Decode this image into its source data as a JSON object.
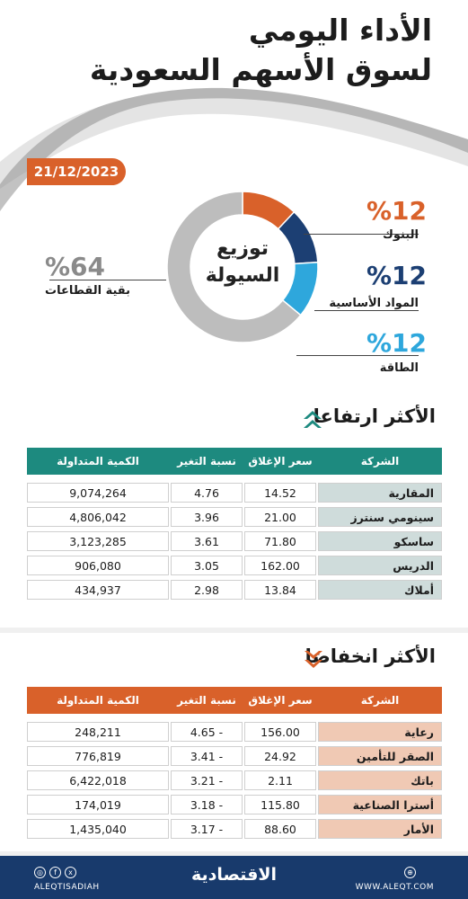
{
  "header": {
    "title_line1": "الأداء اليومي",
    "title_line2": "لسوق الأسهم السعودية",
    "date": "21/12/2023"
  },
  "colors": {
    "orange": "#d9612a",
    "navy": "#1c3f73",
    "sky": "#2ea7dc",
    "grey": "#bdbdbd",
    "teal": "#1d8a7f",
    "footer": "#183a6c"
  },
  "chart_data": {
    "type": "pie",
    "title": "توزيع السيولة",
    "center_line1": "توزيع",
    "center_line2": "السيولة",
    "slices": [
      {
        "label": "البنوك",
        "value": 12,
        "display": "%12",
        "color": "#d9612a"
      },
      {
        "label": "المواد الأساسية",
        "value": 12,
        "display": "%12",
        "color": "#1c3f73"
      },
      {
        "label": "الطاقة",
        "value": 12,
        "display": "%12",
        "color": "#2ea7dc"
      },
      {
        "label": "بقية القطاعات",
        "value": 64,
        "display": "%64",
        "color": "#bdbdbd"
      }
    ]
  },
  "gainers": {
    "title": "الأكثر ارتفاعا",
    "icon": "double-chevron-up-icon",
    "headers": {
      "company": "الشركة",
      "close": "سعر الإغلاق",
      "change": "نسبة التغير %",
      "volume": "الكمية المتداولة"
    },
    "rows": [
      {
        "company": "المقارية",
        "close": "14.52",
        "change": "4.76",
        "volume": "9,074,264"
      },
      {
        "company": "سينومي سنترز",
        "close": "21.00",
        "change": "3.96",
        "volume": "4,806,042"
      },
      {
        "company": "ساسكو",
        "close": "71.80",
        "change": "3.61",
        "volume": "3,123,285"
      },
      {
        "company": "الدريس",
        "close": "162.00",
        "change": "3.05",
        "volume": "906,080"
      },
      {
        "company": "أملاك",
        "close": "13.84",
        "change": "2.98",
        "volume": "434,937"
      }
    ]
  },
  "losers": {
    "title": "الأكثر انخفاضا",
    "icon": "double-chevron-down-icon",
    "headers": {
      "company": "الشركة",
      "close": "سعر الإغلاق",
      "change": "نسبة التغير %",
      "volume": "الكمية المتداولة"
    },
    "rows": [
      {
        "company": "رعاية",
        "close": "156.00",
        "change": "4.65 -",
        "volume": "248,211"
      },
      {
        "company": "الصقر للتأمين",
        "close": "24.92",
        "change": "3.41 -",
        "volume": "776,819"
      },
      {
        "company": "باتك",
        "close": "2.11",
        "change": "3.21 -",
        "volume": "6,422,018"
      },
      {
        "company": "أسترا الصناعية",
        "close": "115.80",
        "change": "3.18 -",
        "volume": "174,019"
      },
      {
        "company": "الأمار",
        "close": "88.60",
        "change": "3.17 -",
        "volume": "1,435,040"
      }
    ]
  },
  "footer": {
    "brand": "الاقتصادية",
    "handle": "ALEQTISADIAH",
    "site": "WWW.ALEQT.COM"
  }
}
